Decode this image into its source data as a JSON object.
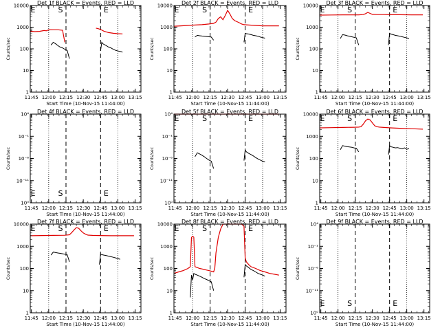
{
  "chart_data": [
    {
      "type": "line",
      "title": "Det 1f BLACK = Events, RED = LLD",
      "xlabel": "Start Time (10-Nov-15 11:44:00)",
      "ylabel": "Counts/sec",
      "yticks": [
        "1",
        "10",
        "100",
        "1000",
        "10000"
      ],
      "ylim": [
        1,
        10000
      ],
      "empty": false,
      "series": [
        {
          "name": "LLD",
          "color": "red",
          "x": [
            0,
            4,
            8,
            12,
            14,
            16,
            20,
            24,
            28,
            30,
            32,
            36,
            40,
            44,
            48,
            52,
            56,
            60,
            64,
            68,
            72,
            76,
            78
          ],
          "y": [
            650,
            620,
            640,
            700,
            680,
            750,
            760,
            760,
            720,
            200,
            null,
            null,
            null,
            null,
            null,
            null,
            null,
            null,
            null,
            null,
            null,
            null,
            null
          ]
        },
        {
          "name": "LLD-b",
          "color": "red",
          "x": [
            57,
            59,
            61,
            64,
            68,
            72,
            76,
            80
          ],
          "y": [
            900,
            850,
            780,
            650,
            560,
            520,
            500,
            490
          ]
        },
        {
          "name": "Events",
          "color": "black",
          "x": [
            18,
            20,
            22,
            24,
            26,
            28,
            30,
            32,
            34
          ],
          "y": [
            150,
            200,
            170,
            140,
            120,
            110,
            95,
            85,
            35
          ]
        },
        {
          "name": "Events-b",
          "color": "black",
          "x": [
            61,
            62,
            63,
            64,
            66,
            68,
            70,
            72,
            74,
            76,
            78,
            80
          ],
          "y": [
            80,
            200,
            170,
            160,
            140,
            120,
            110,
            95,
            85,
            80,
            75,
            70
          ]
        }
      ]
    },
    {
      "type": "line",
      "title": "Det 2f BLACK = Events, RED = LLD",
      "xlabel": "Start Time (10-Nov-15 11:44:00)",
      "ylabel": "Counts/sec",
      "yticks": [
        "1",
        "10",
        "100",
        "1000",
        "10000"
      ],
      "ylim": [
        1,
        10000
      ],
      "empty": false,
      "series": [
        {
          "name": "LLD",
          "color": "red",
          "x": [
            0,
            6,
            12,
            18,
            24,
            30,
            34,
            36,
            38,
            40,
            42,
            44,
            46,
            48,
            50,
            52,
            54,
            56,
            58,
            60,
            64,
            70,
            76,
            82,
            90
          ],
          "y": [
            1100,
            1150,
            1200,
            1250,
            1300,
            1400,
            1500,
            1700,
            2500,
            3000,
            2200,
            3500,
            6000,
            4000,
            2500,
            2000,
            1800,
            1600,
            1400,
            1300,
            1250,
            1200,
            1150,
            1150,
            1150
          ]
        },
        {
          "name": "Events",
          "color": "black",
          "x": [
            18,
            20,
            22,
            24,
            26,
            28,
            30,
            32,
            34
          ],
          "y": [
            350,
            420,
            400,
            390,
            380,
            370,
            360,
            350,
            250
          ]
        },
        {
          "name": "Events-b",
          "color": "black",
          "x": [
            60,
            61,
            62,
            64,
            66,
            68,
            70,
            72,
            74,
            76,
            78
          ],
          "y": [
            200,
            520,
            500,
            480,
            450,
            420,
            400,
            380,
            350,
            330,
            310
          ]
        }
      ]
    },
    {
      "type": "line",
      "title": "Det 3f BLACK = Events, RED = LLD",
      "xlabel": "Start Time (10-Nov-15 11:44:00)",
      "ylabel": "Counts/sec",
      "yticks": [
        "1",
        "10",
        "100",
        "1000",
        "10000"
      ],
      "ylim": [
        1,
        10000
      ],
      "empty": false,
      "series": [
        {
          "name": "LLD",
          "color": "red",
          "x": [
            0,
            10,
            20,
            30,
            34,
            38,
            40,
            42,
            44,
            46,
            50,
            56,
            62,
            70,
            80,
            90
          ],
          "y": [
            3600,
            3650,
            3700,
            3700,
            3700,
            3800,
            4200,
            4800,
            4300,
            3900,
            3800,
            3800,
            3750,
            3750,
            3700,
            3700
          ]
        },
        {
          "name": "Events",
          "color": "black",
          "x": [
            18,
            20,
            22,
            24,
            26,
            28,
            30,
            32,
            34
          ],
          "y": [
            300,
            450,
            430,
            400,
            380,
            360,
            340,
            320,
            150
          ]
        },
        {
          "name": "Events-b",
          "color": "black",
          "x": [
            60,
            61,
            62,
            64,
            66,
            68,
            70,
            72,
            74,
            76,
            78
          ],
          "y": [
            150,
            520,
            480,
            450,
            420,
            400,
            380,
            360,
            340,
            320,
            300
          ]
        }
      ]
    },
    {
      "type": "line",
      "title": "Det 4f BLACK = Events, RED = LLD",
      "xlabel": "Start Time (10-Nov-15 11:44:00)",
      "ylabel": "Counts/sec",
      "yticks": [
        "10⁰",
        "10⁻¹¹",
        "10⁻⁶",
        "10⁻¹",
        "10⁴"
      ],
      "ylim": [
        1,
        10000
      ],
      "empty": true,
      "series": []
    },
    {
      "type": "line",
      "title": "Det 5f BLACK = Events, RED = LLD",
      "xlabel": "Start Time (10-Nov-15 11:44:00)",
      "ylabel": "Counts/sec",
      "yticks": [
        "10⁰",
        "10⁻¹¹",
        "10⁻⁶",
        "10⁻¹",
        "10⁴"
      ],
      "ylim": [
        1,
        10000
      ],
      "empty": false,
      "series": [
        {
          "name": "LLD",
          "color": "red",
          "x": [
            0,
            90
          ],
          "y": [
            10000,
            10000
          ]
        },
        {
          "name": "Events",
          "color": "black",
          "x": [
            18,
            20,
            22,
            24,
            26,
            28,
            30,
            32,
            34
          ],
          "y": [
            120,
            180,
            160,
            140,
            120,
            100,
            85,
            75,
            35
          ]
        },
        {
          "name": "Events-b",
          "color": "black",
          "x": [
            60,
            61,
            62,
            64,
            66,
            68,
            70,
            72,
            74,
            76,
            78
          ],
          "y": [
            80,
            240,
            200,
            170,
            150,
            130,
            110,
            95,
            85,
            75,
            70
          ]
        }
      ]
    },
    {
      "type": "line",
      "title": "Det 6f BLACK = Events, RED = LLD",
      "xlabel": "Start Time (10-Nov-15 11:44:00)",
      "ylabel": "Counts/sec",
      "yticks": [
        "1",
        "10",
        "100",
        "1000",
        "10000"
      ],
      "ylim": [
        1,
        10000
      ],
      "empty": false,
      "series": [
        {
          "name": "LLD",
          "color": "red",
          "x": [
            0,
            10,
            20,
            30,
            34,
            36,
            38,
            40,
            42,
            44,
            46,
            48,
            50,
            52,
            56,
            62,
            70,
            80,
            90
          ],
          "y": [
            2400,
            2450,
            2500,
            2550,
            2600,
            2700,
            3500,
            5000,
            6000,
            5500,
            4000,
            3000,
            2700,
            2600,
            2500,
            2400,
            2300,
            2200,
            2100
          ]
        },
        {
          "name": "Events",
          "color": "black",
          "x": [
            18,
            20,
            22,
            24,
            26,
            28,
            30,
            32,
            34
          ],
          "y": [
            250,
            380,
            360,
            340,
            330,
            320,
            300,
            290,
            200
          ]
        },
        {
          "name": "Events-b",
          "color": "black",
          "x": [
            60,
            61,
            62,
            64,
            66,
            68,
            70,
            72,
            74,
            76,
            78
          ],
          "y": [
            150,
            380,
            340,
            320,
            300,
            310,
            290,
            270,
            300,
            260,
            280
          ]
        }
      ]
    },
    {
      "type": "line",
      "title": "Det 7f BLACK = Events, RED = LLD",
      "xlabel": "Start Time (10-Nov-15 11:44:00)",
      "ylabel": "Counts/sec",
      "yticks": [
        "1",
        "10",
        "100",
        "1000",
        "10000"
      ],
      "ylim": [
        1,
        10000
      ],
      "empty": false,
      "series": [
        {
          "name": "LLD",
          "color": "red",
          "x": [
            0,
            10,
            20,
            30,
            34,
            36,
            38,
            40,
            42,
            44,
            46,
            48,
            50,
            54,
            60,
            70,
            80,
            90
          ],
          "y": [
            3000,
            3050,
            3100,
            3150,
            3300,
            4200,
            5500,
            7000,
            6500,
            5000,
            4000,
            3500,
            3200,
            3100,
            3050,
            3000,
            3000,
            3000
          ]
        },
        {
          "name": "Events",
          "color": "black",
          "x": [
            18,
            20,
            22,
            24,
            26,
            28,
            30,
            32,
            34
          ],
          "y": [
            400,
            550,
            520,
            500,
            480,
            460,
            440,
            420,
            200
          ]
        },
        {
          "name": "Events-b",
          "color": "black",
          "x": [
            60,
            61,
            62,
            64,
            66,
            68,
            70,
            72,
            74,
            76,
            78
          ],
          "y": [
            150,
            450,
            420,
            400,
            380,
            360,
            340,
            320,
            300,
            280,
            260
          ]
        }
      ]
    },
    {
      "type": "line",
      "title": "Det 8f BLACK = Events, RED = LLD",
      "xlabel": "Start Time (10-Nov-15 11:44:00)",
      "ylabel": "Counts/sec",
      "yticks": [
        "1",
        "10",
        "100",
        "1000",
        "10000"
      ],
      "ylim": [
        1,
        10000
      ],
      "empty": false,
      "series": [
        {
          "name": "LLD",
          "color": "red",
          "x": [
            0,
            4,
            8,
            12,
            14,
            15,
            16,
            17,
            18,
            20,
            22,
            24,
            26,
            28,
            30,
            32,
            34,
            35,
            36,
            38,
            40,
            42,
            44,
            46,
            48,
            50,
            52,
            54,
            56,
            58,
            60,
            61,
            62,
            64,
            66,
            70,
            74,
            78,
            82,
            86,
            90
          ],
          "y": [
            60,
            70,
            80,
            100,
            120,
            2500,
            2800,
            2600,
            120,
            110,
            100,
            95,
            90,
            85,
            80,
            75,
            70,
            100,
            500,
            2500,
            6000,
            10000,
            10000,
            10000,
            10000,
            10000,
            10000,
            10000,
            10000,
            10000,
            8000,
            300,
            200,
            150,
            120,
            100,
            80,
            70,
            60,
            55,
            50
          ]
        },
        {
          "name": "Events",
          "color": "black",
          "x": [
            14,
            15,
            16,
            17,
            18,
            20,
            22,
            24,
            26,
            28,
            30,
            32,
            34
          ],
          "y": [
            5,
            50,
            30,
            60,
            55,
            50,
            45,
            40,
            35,
            32,
            28,
            25,
            10
          ]
        },
        {
          "name": "Events-b",
          "color": "black",
          "x": [
            60,
            61,
            62,
            64,
            66,
            68,
            70,
            72,
            74,
            76,
            78
          ],
          "y": [
            40,
            150,
            130,
            110,
            90,
            80,
            70,
            60,
            55,
            50,
            45
          ]
        }
      ]
    },
    {
      "type": "line",
      "title": "Det 9f BLACK = Events, RED = LLD",
      "xlabel": "Start Time (10-Nov-15 11:44:00)",
      "ylabel": "Counts/sec",
      "yticks": [
        "10⁰",
        "10⁻¹¹",
        "10⁻⁶",
        "10⁻¹",
        "10⁴"
      ],
      "ylim": [
        1,
        10000
      ],
      "empty": true,
      "series": []
    }
  ],
  "shared": {
    "xticks": [
      "11:45",
      "12:00",
      "12:15",
      "12:30",
      "12:45",
      "13:00",
      "13:15"
    ],
    "xtick_minutes": [
      1,
      16,
      31,
      46,
      61,
      76,
      91
    ],
    "xlim": [
      0,
      96
    ],
    "dotted_lines_minutes": [
      16,
      76
    ],
    "dashed_lines_minutes": [
      31,
      61
    ],
    "markers": [
      "E",
      "S",
      "E"
    ]
  }
}
